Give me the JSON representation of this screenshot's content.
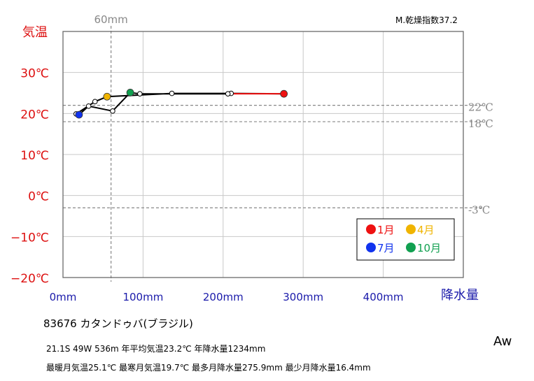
{
  "chart_data": {
    "type": "line",
    "title": "83676 カタンドゥバ(ブラジル)",
    "xlabel": "降水量",
    "ylabel": "気温",
    "xlim": [
      0,
      500
    ],
    "ylim": [
      -20,
      40
    ],
    "x_ticks": [
      "0mm",
      "100mm",
      "200mm",
      "300mm",
      "400mm"
    ],
    "y_ticks": [
      "30℃",
      "20℃",
      "10℃",
      "0℃",
      "−10℃",
      "−20℃"
    ],
    "y_tick_values": [
      30,
      20,
      10,
      0,
      -10,
      -20
    ],
    "x_tick_values": [
      0,
      100,
      200,
      300,
      400
    ],
    "ref_lines_temp": [
      {
        "value": 22,
        "label": "22℃"
      },
      {
        "value": 18,
        "label": "18℃"
      },
      {
        "value": -3,
        "label": "-3℃"
      }
    ],
    "ref_line_precip": {
      "value": 60,
      "label": "60mm"
    },
    "dryness_index": "M.乾燥指数37.2",
    "climate_class": "Aw",
    "months": [
      1,
      2,
      3,
      4,
      5,
      6,
      7,
      8,
      9,
      10,
      11,
      12
    ],
    "precip": [
      275.9,
      210,
      136,
      55,
      40,
      16.4,
      20,
      32,
      62,
      84,
      96,
      206
    ],
    "temp": [
      24.8,
      24.9,
      24.9,
      24.1,
      22.9,
      19.9,
      19.7,
      21.8,
      20.6,
      25.1,
      24.8,
      24.8
    ],
    "highlight": [
      {
        "month": 1,
        "label": "1月",
        "color": "#ee1111"
      },
      {
        "month": 4,
        "label": "4月",
        "color": "#f0b400"
      },
      {
        "month": 7,
        "label": "7月",
        "color": "#1133ee"
      },
      {
        "month": 10,
        "label": "10月",
        "color": "#11a050"
      }
    ],
    "grid": true,
    "legend_position": "bottom-right"
  },
  "info": {
    "station": "83676 カタンドゥバ(ブラジル)",
    "line1": "21.1S 49W 536m 年平均気温23.2℃ 年降水量1234mm",
    "line2": "最暖月気温25.1℃ 最寒月気温19.7℃ 最多月降水量275.9mm 最少月降水量16.4mm"
  },
  "colors": {
    "temp_axis": "#dd1111",
    "precip_axis": "#1a1aaa",
    "ref": "#888888",
    "grid": "#c8c8c8",
    "jan_segment": "#ee1111"
  }
}
